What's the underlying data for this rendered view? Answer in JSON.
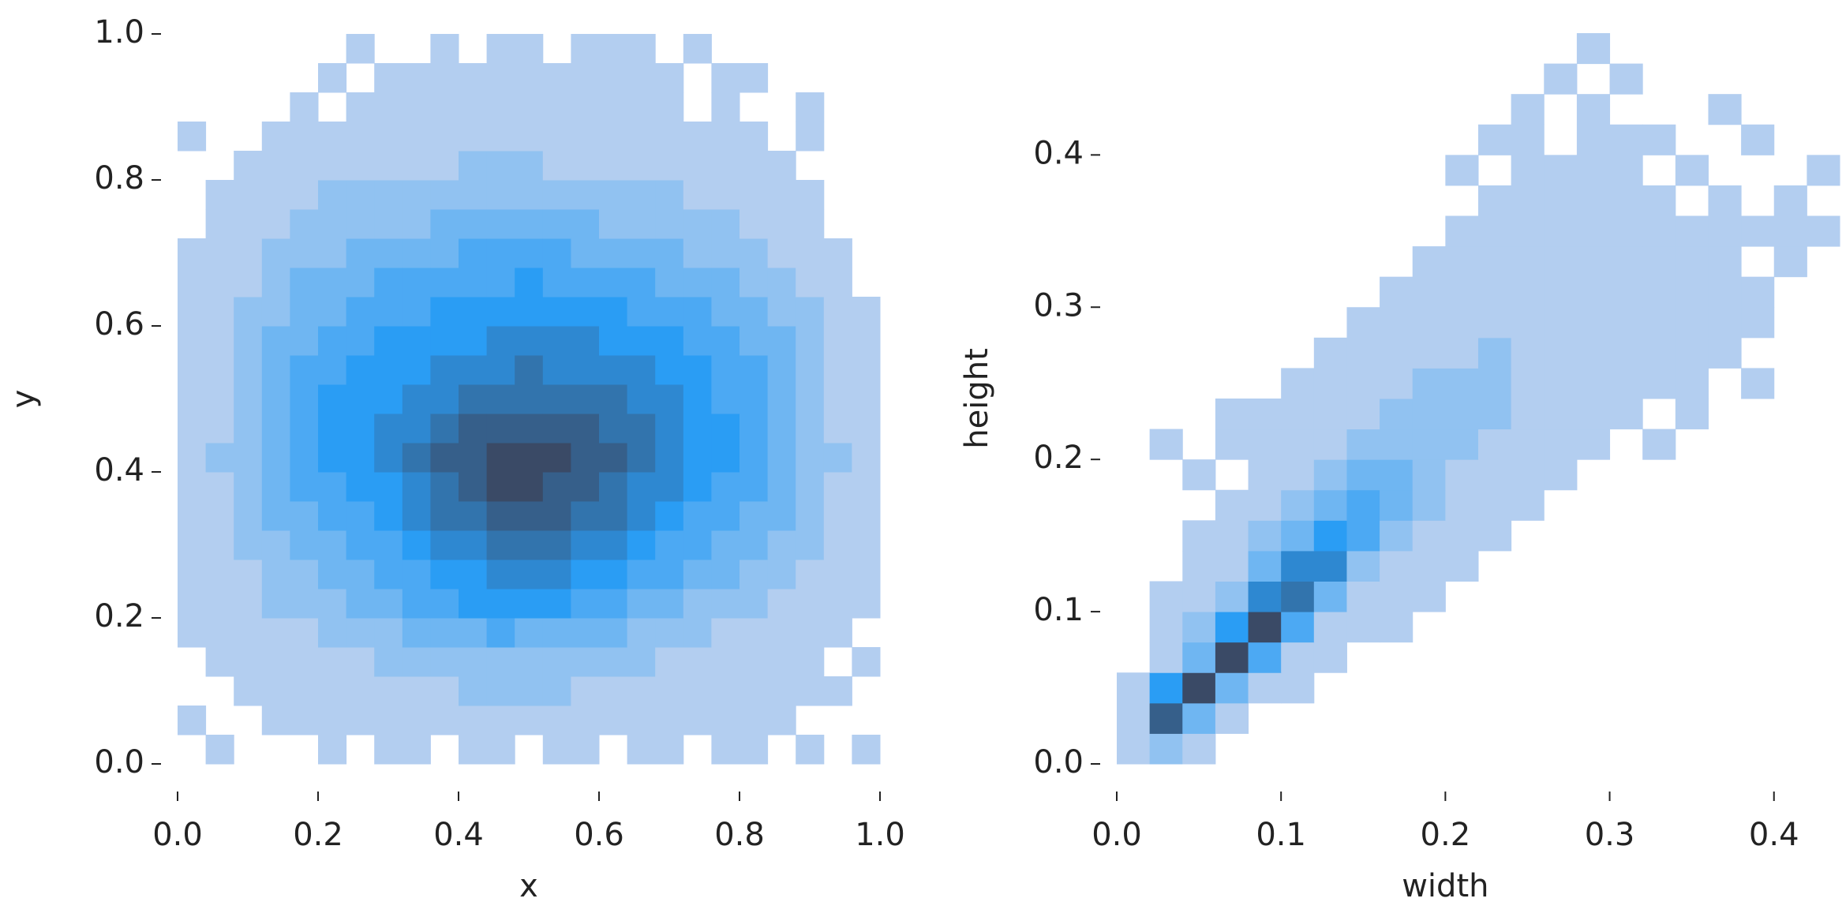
{
  "chart_data": [
    {
      "type": "histogram2d",
      "xlabel": "x",
      "ylabel": "y",
      "xlim": [
        0,
        1
      ],
      "ylim": [
        0,
        1
      ],
      "xticks": [
        {
          "value": 0,
          "label": "0.0"
        },
        0.2,
        0.4,
        0.6,
        0.8,
        {
          "value": 1,
          "label": "1.0"
        }
      ],
      "yticks": [
        {
          "value": 0,
          "label": "0.0"
        },
        0.2,
        0.4,
        0.6,
        0.8,
        {
          "value": 1,
          "label": "1.0"
        }
      ],
      "cmap": [
        "#b3cef0",
        "#2a9df4",
        "#3a4a66"
      ],
      "xbins": [
        0,
        0.04,
        0.08,
        0.12,
        0.16,
        0.2,
        0.24,
        0.28,
        0.32,
        0.36,
        0.4,
        0.44,
        0.48,
        0.52,
        0.56,
        0.6,
        0.64,
        0.68,
        0.72,
        0.76,
        0.8,
        0.84,
        0.88,
        0.92,
        0.96,
        1
      ],
      "ybins": [
        0,
        0.04,
        0.08,
        0.12,
        0.16,
        0.2,
        0.24,
        0.28,
        0.32,
        0.36,
        0.4,
        0.44,
        0.48,
        0.52,
        0.56,
        0.6,
        0.64,
        0.68,
        0.72,
        0.76,
        0.8,
        0.84,
        0.88,
        0.92,
        0.96,
        1
      ],
      "counts": [
        [
          0,
          1,
          0,
          0,
          0,
          1,
          0,
          1,
          1,
          0,
          1,
          1,
          0,
          1,
          1,
          0,
          1,
          1,
          0,
          1,
          1,
          0,
          1,
          0,
          1
        ],
        [
          1,
          0,
          0,
          1,
          1,
          1,
          1,
          1,
          1,
          1,
          1,
          1,
          1,
          1,
          1,
          1,
          1,
          1,
          1,
          1,
          1,
          1,
          0,
          0,
          0
        ],
        [
          0,
          0,
          1,
          1,
          1,
          1,
          1,
          1,
          1,
          1,
          2,
          2,
          2,
          2,
          1,
          1,
          1,
          1,
          1,
          1,
          1,
          1,
          1,
          1,
          0
        ],
        [
          0,
          1,
          1,
          1,
          1,
          1,
          1,
          2,
          2,
          2,
          2,
          2,
          2,
          2,
          2,
          2,
          2,
          1,
          1,
          1,
          1,
          1,
          1,
          0,
          1
        ],
        [
          1,
          1,
          1,
          1,
          1,
          2,
          2,
          2,
          3,
          3,
          3,
          4,
          3,
          3,
          3,
          3,
          2,
          2,
          2,
          1,
          1,
          1,
          1,
          1,
          0
        ],
        [
          1,
          1,
          1,
          2,
          2,
          2,
          3,
          3,
          4,
          4,
          5,
          5,
          5,
          5,
          4,
          4,
          3,
          3,
          2,
          2,
          2,
          1,
          1,
          1,
          1
        ],
        [
          1,
          1,
          1,
          2,
          2,
          3,
          3,
          4,
          4,
          5,
          5,
          6,
          6,
          6,
          5,
          5,
          4,
          4,
          3,
          3,
          2,
          2,
          1,
          1,
          1
        ],
        [
          1,
          1,
          2,
          2,
          3,
          3,
          4,
          4,
          5,
          6,
          6,
          7,
          7,
          7,
          6,
          6,
          5,
          4,
          4,
          3,
          3,
          2,
          2,
          1,
          1
        ],
        [
          1,
          1,
          2,
          3,
          3,
          4,
          4,
          5,
          6,
          7,
          7,
          8,
          8,
          8,
          7,
          7,
          6,
          5,
          4,
          4,
          3,
          3,
          2,
          1,
          1
        ],
        [
          1,
          1,
          2,
          3,
          4,
          4,
          5,
          5,
          6,
          7,
          8,
          9,
          9,
          8,
          8,
          7,
          6,
          6,
          5,
          4,
          4,
          3,
          2,
          1,
          1
        ],
        [
          1,
          2,
          2,
          3,
          4,
          5,
          5,
          6,
          7,
          8,
          8,
          9,
          9,
          9,
          8,
          8,
          7,
          6,
          5,
          5,
          4,
          3,
          2,
          2,
          1
        ],
        [
          1,
          1,
          2,
          3,
          4,
          5,
          5,
          6,
          6,
          7,
          8,
          8,
          8,
          8,
          8,
          7,
          7,
          6,
          5,
          5,
          4,
          3,
          2,
          1,
          1
        ],
        [
          1,
          1,
          2,
          3,
          4,
          5,
          5,
          5,
          6,
          6,
          7,
          7,
          7,
          7,
          7,
          7,
          6,
          6,
          5,
          4,
          4,
          3,
          2,
          1,
          1
        ],
        [
          1,
          1,
          2,
          3,
          4,
          4,
          5,
          5,
          5,
          6,
          6,
          6,
          7,
          6,
          6,
          6,
          6,
          5,
          5,
          4,
          4,
          3,
          2,
          1,
          1
        ],
        [
          1,
          1,
          2,
          3,
          3,
          4,
          4,
          5,
          5,
          5,
          5,
          6,
          6,
          6,
          6,
          5,
          5,
          5,
          4,
          4,
          3,
          3,
          2,
          1,
          1
        ],
        [
          1,
          1,
          2,
          2,
          3,
          3,
          4,
          4,
          4,
          5,
          5,
          5,
          5,
          5,
          5,
          5,
          4,
          4,
          4,
          3,
          3,
          2,
          2,
          1,
          1
        ],
        [
          1,
          1,
          1,
          2,
          3,
          3,
          3,
          4,
          4,
          4,
          4,
          4,
          5,
          4,
          4,
          4,
          4,
          3,
          3,
          3,
          2,
          2,
          1,
          1,
          0
        ],
        [
          1,
          1,
          1,
          2,
          2,
          2,
          3,
          3,
          3,
          3,
          4,
          4,
          4,
          4,
          3,
          3,
          3,
          3,
          2,
          2,
          2,
          1,
          1,
          1,
          0
        ],
        [
          0,
          1,
          1,
          1,
          2,
          2,
          2,
          2,
          2,
          3,
          3,
          3,
          3,
          3,
          3,
          2,
          2,
          2,
          2,
          2,
          1,
          1,
          1,
          0,
          0
        ],
        [
          0,
          1,
          1,
          1,
          1,
          2,
          2,
          2,
          2,
          2,
          2,
          2,
          2,
          2,
          2,
          2,
          2,
          2,
          1,
          1,
          1,
          1,
          1,
          0,
          0
        ],
        [
          0,
          0,
          1,
          1,
          1,
          1,
          1,
          1,
          1,
          1,
          2,
          2,
          2,
          1,
          1,
          1,
          1,
          1,
          1,
          1,
          1,
          1,
          0,
          0,
          0
        ],
        [
          1,
          0,
          0,
          1,
          1,
          1,
          1,
          1,
          1,
          1,
          1,
          1,
          1,
          1,
          1,
          1,
          1,
          1,
          1,
          1,
          1,
          0,
          1,
          0,
          0
        ],
        [
          0,
          0,
          0,
          0,
          1,
          0,
          1,
          1,
          1,
          1,
          1,
          1,
          1,
          1,
          1,
          1,
          1,
          1,
          0,
          1,
          0,
          0,
          1,
          0,
          0
        ],
        [
          0,
          0,
          0,
          0,
          0,
          1,
          0,
          1,
          1,
          1,
          1,
          1,
          1,
          1,
          1,
          1,
          1,
          1,
          0,
          1,
          1,
          0,
          0,
          0,
          0
        ],
        [
          0,
          0,
          0,
          0,
          0,
          0,
          1,
          0,
          0,
          1,
          0,
          1,
          1,
          0,
          1,
          1,
          1,
          0,
          1,
          0,
          0,
          0,
          0,
          0,
          0
        ]
      ]
    },
    {
      "type": "histogram2d",
      "xlabel": "width",
      "ylabel": "height",
      "xlim": [
        0,
        0.44
      ],
      "ylim": [
        0,
        0.48
      ],
      "xticks": [
        {
          "value": 0,
          "label": "0.0"
        },
        0.1,
        0.2,
        0.3,
        0.4
      ],
      "yticks": [
        {
          "value": 0,
          "label": "0.0"
        },
        0.1,
        0.2,
        0.3,
        0.4
      ],
      "cmap": [
        "#b3cef0",
        "#2a9df4",
        "#3a4a66"
      ],
      "xbins": [
        0,
        0.02,
        0.04,
        0.06,
        0.08,
        0.1,
        0.12,
        0.14,
        0.16,
        0.18,
        0.2,
        0.22,
        0.24,
        0.26,
        0.28,
        0.3,
        0.32,
        0.34,
        0.36,
        0.38,
        0.4,
        0.42,
        0.44
      ],
      "ybins": [
        0,
        0.02,
        0.04,
        0.06,
        0.08,
        0.1,
        0.12,
        0.14,
        0.16,
        0.18,
        0.2,
        0.22,
        0.24,
        0.26,
        0.28,
        0.3,
        0.32,
        0.34,
        0.36,
        0.38,
        0.4,
        0.42,
        0.44,
        0.46,
        0.48
      ],
      "counts": [
        [
          1,
          2,
          1,
          0,
          0,
          0,
          0,
          0,
          0,
          0,
          0,
          0,
          0,
          0,
          0,
          0,
          0,
          0,
          0,
          0,
          0,
          0
        ],
        [
          1,
          8,
          3,
          1,
          0,
          0,
          0,
          0,
          0,
          0,
          0,
          0,
          0,
          0,
          0,
          0,
          0,
          0,
          0,
          0,
          0,
          0
        ],
        [
          1,
          5,
          9,
          3,
          1,
          1,
          0,
          0,
          0,
          0,
          0,
          0,
          0,
          0,
          0,
          0,
          0,
          0,
          0,
          0,
          0,
          0
        ],
        [
          0,
          1,
          3,
          9,
          4,
          1,
          1,
          0,
          0,
          0,
          0,
          0,
          0,
          0,
          0,
          0,
          0,
          0,
          0,
          0,
          0,
          0
        ],
        [
          0,
          1,
          2,
          5,
          9,
          4,
          1,
          1,
          1,
          0,
          0,
          0,
          0,
          0,
          0,
          0,
          0,
          0,
          0,
          0,
          0,
          0
        ],
        [
          0,
          1,
          1,
          2,
          6,
          7,
          3,
          1,
          1,
          1,
          0,
          0,
          0,
          0,
          0,
          0,
          0,
          0,
          0,
          0,
          0,
          0
        ],
        [
          0,
          0,
          1,
          1,
          3,
          6,
          6,
          2,
          1,
          1,
          1,
          0,
          0,
          0,
          0,
          0,
          0,
          0,
          0,
          0,
          0,
          0
        ],
        [
          0,
          0,
          1,
          1,
          2,
          3,
          5,
          4,
          2,
          1,
          1,
          1,
          0,
          0,
          0,
          0,
          0,
          0,
          0,
          0,
          0,
          0
        ],
        [
          0,
          0,
          0,
          1,
          1,
          2,
          3,
          4,
          3,
          2,
          1,
          1,
          1,
          0,
          0,
          0,
          0,
          0,
          0,
          0,
          0,
          0
        ],
        [
          0,
          0,
          1,
          0,
          1,
          1,
          2,
          3,
          3,
          2,
          1,
          1,
          1,
          1,
          0,
          0,
          0,
          0,
          0,
          0,
          0,
          0
        ],
        [
          0,
          1,
          0,
          1,
          1,
          1,
          1,
          2,
          2,
          2,
          2,
          1,
          1,
          1,
          1,
          0,
          1,
          0,
          0,
          0,
          0,
          0
        ],
        [
          0,
          0,
          0,
          1,
          1,
          1,
          1,
          1,
          2,
          2,
          2,
          2,
          1,
          1,
          1,
          1,
          0,
          1,
          0,
          0,
          0,
          0
        ],
        [
          0,
          0,
          0,
          0,
          0,
          1,
          1,
          1,
          1,
          2,
          2,
          2,
          1,
          1,
          1,
          1,
          1,
          1,
          0,
          1,
          0,
          0
        ],
        [
          0,
          0,
          0,
          0,
          0,
          0,
          1,
          1,
          1,
          1,
          1,
          2,
          1,
          1,
          1,
          1,
          1,
          1,
          1,
          0,
          0,
          0
        ],
        [
          0,
          0,
          0,
          0,
          0,
          0,
          0,
          1,
          1,
          1,
          1,
          1,
          1,
          1,
          1,
          1,
          1,
          1,
          1,
          1,
          0,
          0
        ],
        [
          0,
          0,
          0,
          0,
          0,
          0,
          0,
          0,
          1,
          1,
          1,
          1,
          1,
          1,
          1,
          1,
          1,
          1,
          1,
          1,
          0,
          0
        ],
        [
          0,
          0,
          0,
          0,
          0,
          0,
          0,
          0,
          0,
          1,
          1,
          1,
          1,
          1,
          1,
          1,
          1,
          1,
          1,
          0,
          1,
          0
        ],
        [
          0,
          0,
          0,
          0,
          0,
          0,
          0,
          0,
          0,
          0,
          1,
          1,
          1,
          1,
          1,
          1,
          1,
          1,
          1,
          1,
          1,
          1
        ],
        [
          0,
          0,
          0,
          0,
          0,
          0,
          0,
          0,
          0,
          0,
          0,
          1,
          1,
          1,
          1,
          1,
          1,
          0,
          1,
          0,
          1,
          0
        ],
        [
          0,
          0,
          0,
          0,
          0,
          0,
          0,
          0,
          0,
          0,
          1,
          0,
          1,
          1,
          1,
          1,
          0,
          1,
          0,
          0,
          0,
          1
        ],
        [
          0,
          0,
          0,
          0,
          0,
          0,
          0,
          0,
          0,
          0,
          0,
          1,
          1,
          0,
          1,
          1,
          1,
          0,
          0,
          1,
          0,
          0
        ],
        [
          0,
          0,
          0,
          0,
          0,
          0,
          0,
          0,
          0,
          0,
          0,
          0,
          1,
          0,
          1,
          0,
          0,
          0,
          1,
          0,
          0,
          0
        ],
        [
          0,
          0,
          0,
          0,
          0,
          0,
          0,
          0,
          0,
          0,
          0,
          0,
          0,
          1,
          0,
          1,
          0,
          0,
          0,
          0,
          0,
          0
        ],
        [
          0,
          0,
          0,
          0,
          0,
          0,
          0,
          0,
          0,
          0,
          0,
          0,
          0,
          0,
          1,
          0,
          0,
          0,
          0,
          0,
          0,
          0
        ]
      ]
    }
  ]
}
